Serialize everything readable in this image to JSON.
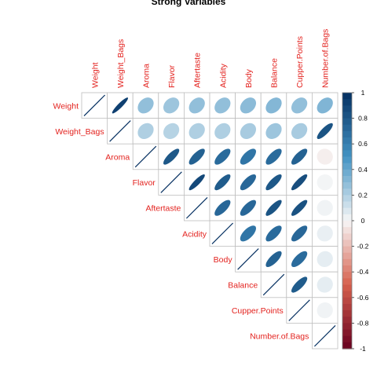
{
  "chart_data": {
    "type": "heatmap",
    "title": "Strong Variables",
    "variables": [
      "Weight",
      "Weight_Bags",
      "Aroma",
      "Flavor",
      "Aftertaste",
      "Acidity",
      "Body",
      "Balance",
      "Cupper.Points",
      "Number.of.Bags"
    ],
    "matrix": [
      [
        1.0,
        0.92,
        0.28,
        0.25,
        0.28,
        0.28,
        0.3,
        0.32,
        0.28,
        0.33
      ],
      [
        0.92,
        1.0,
        0.2,
        0.18,
        0.2,
        0.2,
        0.22,
        0.25,
        0.22,
        0.82
      ],
      [
        0.28,
        0.2,
        1.0,
        0.8,
        0.75,
        0.7,
        0.65,
        0.7,
        0.75,
        -0.03
      ],
      [
        0.25,
        0.18,
        0.8,
        1.0,
        0.88,
        0.78,
        0.72,
        0.8,
        0.85,
        0.01
      ],
      [
        0.28,
        0.2,
        0.75,
        0.88,
        1.0,
        0.72,
        0.72,
        0.82,
        0.83,
        0.02
      ],
      [
        0.28,
        0.2,
        0.7,
        0.78,
        0.72,
        1.0,
        0.65,
        0.7,
        0.72,
        0.04
      ],
      [
        0.3,
        0.22,
        0.65,
        0.72,
        0.72,
        0.65,
        1.0,
        0.75,
        0.7,
        0.05
      ],
      [
        0.32,
        0.25,
        0.7,
        0.8,
        0.82,
        0.7,
        0.75,
        1.0,
        0.78,
        0.05
      ],
      [
        0.28,
        0.22,
        0.75,
        0.85,
        0.83,
        0.72,
        0.7,
        0.78,
        1.0,
        0.02
      ],
      [
        0.33,
        0.82,
        -0.03,
        0.01,
        0.02,
        0.04,
        0.05,
        0.05,
        0.02,
        1.0
      ]
    ],
    "colorbar": {
      "ticks": [
        "1",
        "0.8",
        "0.6",
        "0.4",
        "0.2",
        "0",
        "-0.2",
        "-0.4",
        "-0.6",
        "-0.8",
        "-1"
      ],
      "range": [
        -1,
        1
      ],
      "colors": {
        "neg_dark": "#67001f",
        "neg_mid": "#d6604d",
        "neutral": "#f7f7f7",
        "pos_mid": "#4393c3",
        "pos_dark": "#053061"
      }
    },
    "label_color": "#e3231f",
    "grid_color": "#bebebe"
  }
}
